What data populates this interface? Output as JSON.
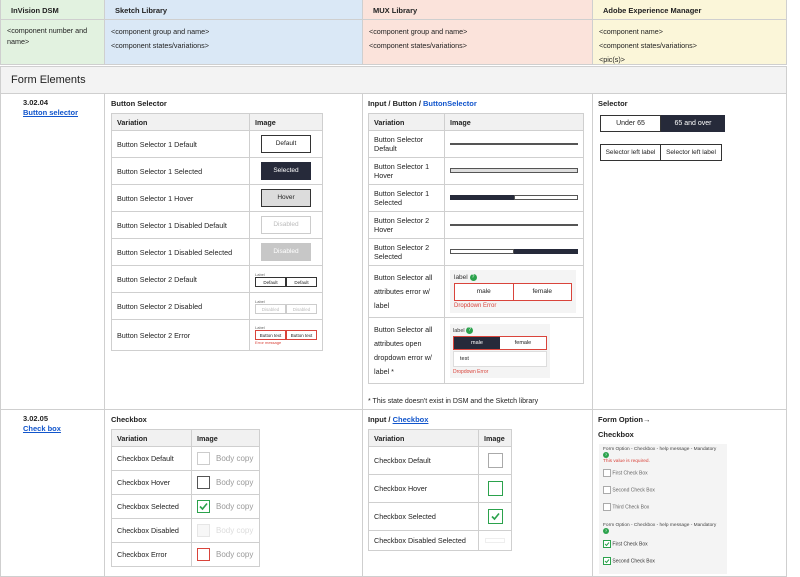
{
  "header": {
    "col1": "InVision DSM",
    "col2": "Sketch Library",
    "col3": "MUX Library",
    "col4": "Adobe Experience Manager"
  },
  "subheader": {
    "col1": "<component number and name>",
    "col2_line1": "<component group and name>",
    "col2_line2": "<component states/variations>",
    "col3_line1": "<component group and name>",
    "col3_line2": "<component states/variations>",
    "col4_line1": "<component name>",
    "col4_line2": "<component states/variations>",
    "col4_line3": "<pic(s)>"
  },
  "section_title": "Form Elements",
  "rows": [
    {
      "number": "3.02.04",
      "link": "Button selector",
      "sketch_title": "Button Selector",
      "mux_title_prefix": "Input / Button / ",
      "mux_title_link": "ButtonSelector",
      "aem_title": "Selector"
    },
    {
      "number": "3.02.05",
      "link": "Check box",
      "sketch_title": "Checkbox",
      "mux_title_prefix": "Input / ",
      "mux_title_link": "Checkbox",
      "aem_title1": "Form Option→",
      "aem_title2": "Checkbox"
    }
  ],
  "table_headers": {
    "variation": "Variation",
    "image": "Image"
  },
  "sketch_button_rows": [
    "Button Selector 1 Default",
    "Button Selector 1 Selected",
    "Button Selector 1 Hover",
    "Button Selector 1 Disabled Default",
    "Button Selector 1 Disabled Selected",
    "Button Selector 2 Default",
    "Button Selector 2 Disabled",
    "Button Selector 2 Error"
  ],
  "sketch_button_images": {
    "default": "Default",
    "selected": "Selected",
    "hover": "Hover",
    "disabled": "Disabled",
    "mini_label": "Label",
    "mini_default": "Default",
    "mini_disabled": "Disabled",
    "mini_button_text": "Button text",
    "mini_error": "Error message"
  },
  "mux_button_rows": [
    "Button Selector Default",
    "Button Selector 1 Hover",
    "Button Selector 1 Selected",
    "Button Selector 2 Hover",
    "Button Selector 2 Selected",
    "Button Selector all attributes error w/ label",
    "Button Selector all attributes open dropdown error w/ label *"
  ],
  "mux_images": {
    "label": "label",
    "male": "male",
    "female": "female",
    "dropdown_error": "Dropdown Error",
    "test": "test"
  },
  "mux_footnote": "* This state doesn't exist in DSM and the Sketch library",
  "aem_selector": {
    "under": "Under 65",
    "over": "65 and over",
    "left1": "Selector left label",
    "left2": "Selector left label"
  },
  "sketch_checkbox_rows": [
    "Checkbox Default",
    "Checkbox Hover",
    "Checkbox Selected",
    "Checkbox Disabled",
    "Checkbox Error"
  ],
  "checkbox_body": "Body copy",
  "mux_checkbox_rows": [
    "Checkbox Default",
    "Checkbox Hover",
    "Checkbox Selected",
    "Checkbox Disabled Selected"
  ],
  "aem_checkbox": {
    "group1_title": "Form Option - Checkbox - help message - Mandatory",
    "required": "This value is required.",
    "first": "First Check Box",
    "second": "Second Check Box",
    "third": "Third Check Box",
    "group2_title": "Form Option - Checkbox - help message - Mandatory",
    "first2": "First Check Box",
    "second2": "Second Check Box"
  },
  "colors": {
    "header_green": "#e2f2e0",
    "header_blue": "#dae8f6",
    "header_pink": "#fbe3db",
    "header_yellow": "#fbf6d9",
    "selected_dark": "#262a3a",
    "link_blue": "#1155cc",
    "error_red": "#d9443b",
    "check_green": "#2ba24c"
  }
}
